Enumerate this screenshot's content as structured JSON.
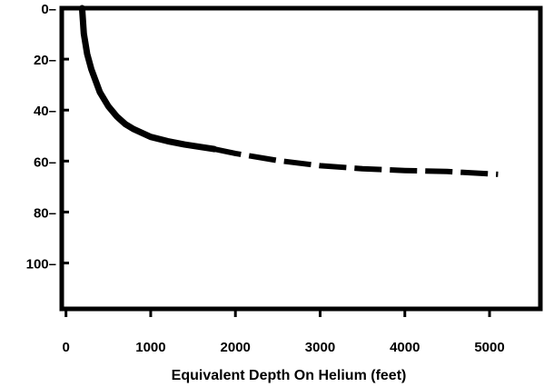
{
  "chart_data": {
    "type": "line",
    "title": "",
    "xlabel": "Equivalent Depth On Helium (feet)",
    "ylabel": "",
    "xlim": [
      -50,
      5600
    ],
    "ylim": [
      0,
      118
    ],
    "y_inverted": true,
    "x_ticks": [
      "0",
      "1000",
      "2000",
      "3000",
      "4000",
      "5000"
    ],
    "y_ticks": [
      "0",
      "20",
      "40",
      "60",
      "80",
      "100"
    ],
    "reference_line": {
      "y": 0,
      "style": "dashed"
    },
    "series": [
      {
        "style": "solid",
        "x": [
          190,
          210,
          250,
          300,
          400,
          500,
          600,
          700,
          800,
          1000,
          1200,
          1400,
          1600,
          1750
        ],
        "y": [
          0,
          10,
          18,
          24,
          33,
          38.5,
          42.5,
          45.5,
          47.5,
          50.5,
          52.2,
          53.5,
          54.5,
          55.3
        ]
      },
      {
        "style": "dashed",
        "x": [
          1750,
          2000,
          2500,
          3000,
          3500,
          4000,
          4500,
          5100
        ],
        "y": [
          55.3,
          57,
          59.8,
          61.8,
          63,
          63.7,
          64.1,
          65.2
        ]
      }
    ]
  }
}
